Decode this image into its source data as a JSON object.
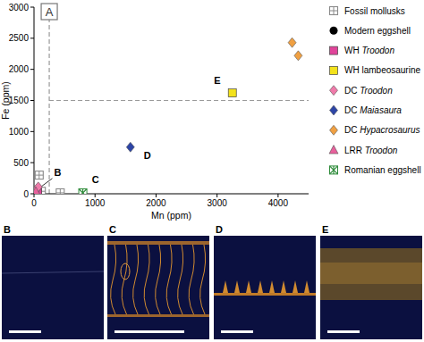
{
  "chart_data": {
    "type": "scatter",
    "panel_label": "A",
    "x_label": "Mn (ppm)",
    "y_label": "Fe (ppm)",
    "xlim": [
      0,
      4500
    ],
    "ylim": [
      0,
      3000
    ],
    "xticks": [
      0,
      1000,
      2000,
      3000,
      4000
    ],
    "yticks": [
      0,
      500,
      1000,
      1500,
      2000,
      2500,
      3000
    ],
    "grid": false,
    "legend": "right",
    "thresholds": {
      "x": 250,
      "y": 1500
    },
    "series": [
      {
        "name": "Fossil mollusks",
        "color": "#8a8a8a",
        "marker": "square-plus",
        "x": [
          85,
          120,
          430
        ],
        "values": [
          300,
          40,
          15
        ]
      },
      {
        "name": "Modern eggshell",
        "color": "#000000",
        "marker": "circle",
        "x": [
          20
        ],
        "values": [
          5
        ]
      },
      {
        "name": "WH Troodon",
        "color": "#e0449a",
        "marker": "square",
        "x": [
          60
        ],
        "values": [
          45
        ]
      },
      {
        "name": "WH lambeosaurine",
        "color": "#f3e21c",
        "marker": "square",
        "x": [
          3250
        ],
        "values": [
          1620
        ]
      },
      {
        "name": "DC Troodon",
        "color": "#f07aaa",
        "marker": "diamond",
        "x": [
          40,
          70
        ],
        "values": [
          70,
          110
        ]
      },
      {
        "name": "DC Maiasaura",
        "color": "#2d45a6",
        "marker": "diamond",
        "x": [
          1580
        ],
        "values": [
          750
        ]
      },
      {
        "name": "DC Hypacrosaurus",
        "color": "#f0a042",
        "marker": "diamond",
        "x": [
          4230,
          4330
        ],
        "values": [
          2430,
          2220
        ]
      },
      {
        "name": "LRR Troodon",
        "color": "#e8609c",
        "marker": "triangle",
        "x": [
          30
        ],
        "values": [
          35
        ]
      },
      {
        "name": "Romanian eggshell",
        "color": "#2e8b3a",
        "marker": "x-star",
        "x": [
          800
        ],
        "values": [
          15
        ]
      }
    ],
    "annotations": [
      {
        "text": "B",
        "x": 330,
        "y": 290,
        "point_to": [
          70,
          80
        ]
      },
      {
        "text": "C",
        "x": 950,
        "y": 170
      },
      {
        "text": "D",
        "x": 1800,
        "y": 560
      },
      {
        "text": "E",
        "x": 2950,
        "y": 1760
      }
    ]
  },
  "image_panels": [
    "B",
    "C",
    "D",
    "E"
  ]
}
